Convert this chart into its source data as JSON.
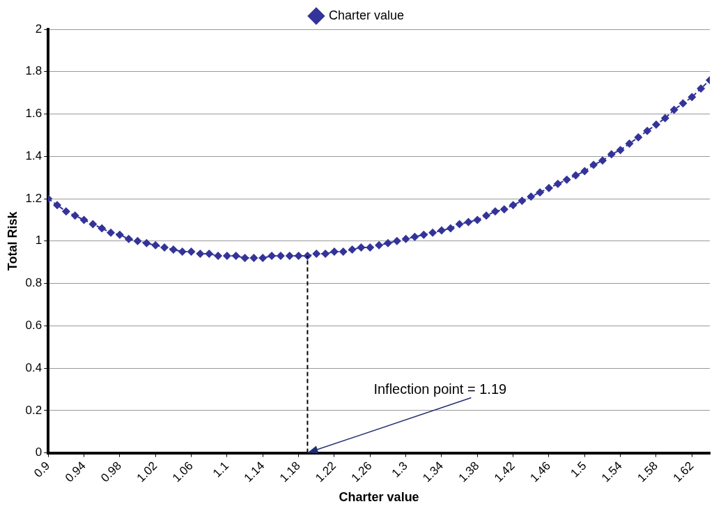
{
  "chart_data": {
    "type": "line",
    "xlabel": "Charter value",
    "ylabel": "Total Risk",
    "x": [
      0.9,
      0.91,
      0.92,
      0.93,
      0.94,
      0.95,
      0.96,
      0.97,
      0.98,
      0.99,
      1.0,
      1.01,
      1.02,
      1.03,
      1.04,
      1.05,
      1.06,
      1.07,
      1.08,
      1.09,
      1.1,
      1.11,
      1.12,
      1.13,
      1.14,
      1.15,
      1.16,
      1.17,
      1.18,
      1.19,
      1.2,
      1.21,
      1.22,
      1.23,
      1.24,
      1.25,
      1.26,
      1.27,
      1.28,
      1.29,
      1.3,
      1.31,
      1.32,
      1.33,
      1.34,
      1.35,
      1.36,
      1.37,
      1.38,
      1.39,
      1.4,
      1.41,
      1.42,
      1.43,
      1.44,
      1.45,
      1.46,
      1.47,
      1.48,
      1.49,
      1.5,
      1.51,
      1.52,
      1.53,
      1.54,
      1.55,
      1.56,
      1.57,
      1.58,
      1.59,
      1.6,
      1.61,
      1.62,
      1.63,
      1.64
    ],
    "series": [
      {
        "name": "Charter value",
        "color": "#333399",
        "values": [
          1.2,
          1.17,
          1.14,
          1.12,
          1.1,
          1.08,
          1.06,
          1.04,
          1.03,
          1.01,
          1.0,
          0.99,
          0.98,
          0.97,
          0.96,
          0.95,
          0.95,
          0.94,
          0.94,
          0.93,
          0.93,
          0.93,
          0.92,
          0.92,
          0.92,
          0.93,
          0.93,
          0.93,
          0.93,
          0.93,
          0.94,
          0.94,
          0.95,
          0.95,
          0.96,
          0.97,
          0.97,
          0.98,
          0.99,
          1.0,
          1.01,
          1.02,
          1.03,
          1.04,
          1.05,
          1.06,
          1.08,
          1.09,
          1.1,
          1.12,
          1.14,
          1.15,
          1.17,
          1.19,
          1.21,
          1.23,
          1.25,
          1.27,
          1.29,
          1.31,
          1.33,
          1.36,
          1.38,
          1.41,
          1.43,
          1.46,
          1.49,
          1.52,
          1.55,
          1.58,
          1.62,
          1.65,
          1.68,
          1.72,
          1.76
        ]
      }
    ],
    "xlim": [
      0.9,
      1.64
    ],
    "xticks": [
      0.9,
      0.94,
      0.98,
      1.02,
      1.06,
      1.1,
      1.14,
      1.18,
      1.22,
      1.26,
      1.3,
      1.34,
      1.38,
      1.42,
      1.46,
      1.5,
      1.54,
      1.58,
      1.62
    ],
    "ylim": [
      0,
      2
    ],
    "yticks": [
      0,
      0.2,
      0.4,
      0.6,
      0.8,
      1,
      1.2,
      1.4,
      1.6,
      1.8,
      2
    ],
    "grid": "y",
    "legend": "top",
    "marker": "diamond",
    "line_style": "dashed",
    "ref_lines": [
      {
        "axis": "x",
        "value": 1.19,
        "color": "#000000",
        "line_style": "dashed"
      }
    ],
    "annotations": [
      {
        "text": "Inflection point = 1.19",
        "x": 1.19,
        "y": 0
      }
    ]
  }
}
